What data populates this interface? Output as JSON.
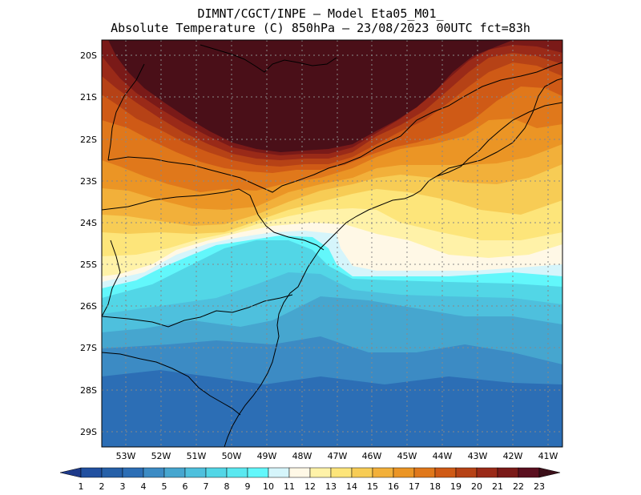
{
  "header": {
    "line1": "DIMNT/CGCT/INPE –  Model Eta05_M01_",
    "line2": "Absolute Temperature (C) 850hPa –  23/08/2023 00UTC fct=83h"
  },
  "map": {
    "lat_labels": [
      "20S",
      "21S",
      "22S",
      "23S",
      "24S",
      "25S",
      "26S",
      "27S",
      "28S",
      "29S"
    ],
    "lon_labels": [
      "53W",
      "52W",
      "51W",
      "50W",
      "49W",
      "48W",
      "47W",
      "46W",
      "45W",
      "44W",
      "43W",
      "42W",
      "41W"
    ]
  },
  "colorbar": {
    "labels": [
      "1",
      "2",
      "3",
      "4",
      "5",
      "6",
      "7",
      "8",
      "9",
      "10",
      "11",
      "12",
      "13",
      "14",
      "15",
      "16",
      "17",
      "18",
      "19",
      "20",
      "21",
      "22",
      "23"
    ],
    "colors": [
      "#1e3a8a",
      "#2150a0",
      "#2660a8",
      "#2c6eb5",
      "#3c8bc4",
      "#46a6cf",
      "#4ec0dd",
      "#52d6e6",
      "#5ae8f0",
      "#62f7fb",
      "#d5f5fb",
      "#fff8e6",
      "#fff2a8",
      "#fde57a",
      "#f7cc55",
      "#f2b03a",
      "#eb9525",
      "#e0781b",
      "#cf5a16",
      "#b64216",
      "#9a2a18",
      "#7a1a18",
      "#5a0f1f",
      "#3c0f19"
    ]
  }
}
